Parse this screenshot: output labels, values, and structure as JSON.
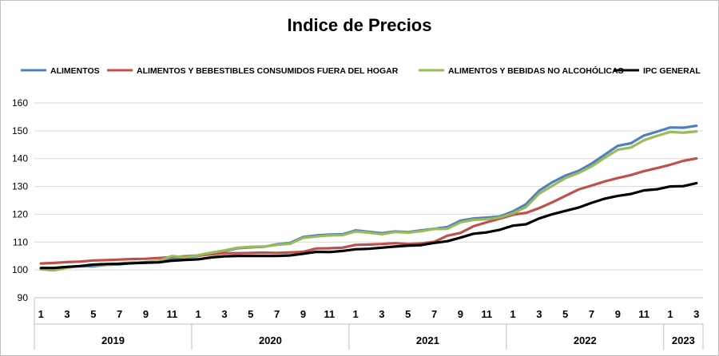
{
  "chart_data": {
    "type": "line",
    "title": "Indice de Precios",
    "ylim": [
      90,
      160
    ],
    "yticks": [
      90,
      100,
      110,
      120,
      130,
      140,
      150,
      160
    ],
    "grid": true,
    "legend_position": "top",
    "x_tick_labels": [
      "1",
      "3",
      "5",
      "7",
      "9",
      "11",
      "1",
      "3",
      "5",
      "7",
      "9",
      "11",
      "1",
      "3",
      "5",
      "7",
      "9",
      "11",
      "1",
      "3",
      "5",
      "7",
      "9",
      "11",
      "1",
      "3"
    ],
    "years": [
      {
        "label": "2019",
        "months": 12
      },
      {
        "label": "2020",
        "months": 12
      },
      {
        "label": "2021",
        "months": 12
      },
      {
        "label": "2022",
        "months": 12
      },
      {
        "label": "2023",
        "months": 3
      }
    ],
    "series": [
      {
        "name": "ALIMENTOS",
        "color": "#4f81bd",
        "values": [
          100.5,
          100.2,
          101.0,
          101.3,
          101.3,
          101.8,
          102.0,
          102.5,
          102.8,
          103.2,
          104.2,
          104.4,
          105.0,
          105.8,
          106.8,
          107.8,
          108.1,
          108.3,
          109.2,
          109.7,
          111.8,
          112.4,
          112.7,
          112.8,
          114.2,
          113.7,
          113.2,
          113.8,
          113.6,
          114.2,
          114.8,
          115.4,
          117.7,
          118.5,
          118.8,
          119.2,
          121.0,
          123.6,
          128.5,
          131.5,
          133.9,
          135.6,
          138.2,
          141.4,
          144.6,
          145.5,
          148.3,
          149.7,
          151.2,
          151.1,
          151.8
        ]
      },
      {
        "name": "ALIMENTOS Y BEBESTIBLES CONSUMIDOS FUERA DEL HOGAR",
        "color": "#c0504d",
        "values": [
          102.3,
          102.5,
          102.8,
          103.0,
          103.4,
          103.5,
          103.7,
          103.9,
          104.0,
          104.3,
          104.6,
          104.9,
          105.2,
          105.6,
          106.0,
          106.0,
          106.1,
          106.2,
          106.1,
          106.3,
          106.5,
          107.7,
          107.8,
          108.0,
          109.0,
          109.1,
          109.3,
          109.6,
          109.3,
          109.5,
          110.1,
          112.3,
          113.3,
          115.7,
          117.1,
          118.4,
          119.8,
          120.5,
          122.2,
          124.3,
          126.6,
          128.9,
          130.3,
          131.8,
          133.0,
          134.1,
          135.5,
          136.6,
          137.8,
          139.2,
          140.1
        ]
      },
      {
        "name": "ALIMENTOS Y BEBIDAS NO ALCOHÓLICAS",
        "color": "#9bbb59",
        "values": [
          100.2,
          99.8,
          100.8,
          101.4,
          101.7,
          101.8,
          102.3,
          102.7,
          102.6,
          103.3,
          105.0,
          104.5,
          105.3,
          106.2,
          107.0,
          108.0,
          108.3,
          108.4,
          109.0,
          109.4,
          111.5,
          112.0,
          112.4,
          112.5,
          113.8,
          113.4,
          112.8,
          113.6,
          113.4,
          113.9,
          114.7,
          114.8,
          117.1,
          118.0,
          118.2,
          118.8,
          120.3,
          122.6,
          127.4,
          130.2,
          133.0,
          134.8,
          137.2,
          140.3,
          143.2,
          144.0,
          146.6,
          148.2,
          149.6,
          149.3,
          149.8
        ]
      },
      {
        "name": "IPC GENERAL",
        "color": "#000000",
        "values": [
          100.7,
          100.7,
          101.1,
          101.4,
          101.9,
          102.1,
          102.2,
          102.4,
          102.6,
          102.7,
          103.3,
          103.6,
          103.8,
          104.5,
          104.9,
          105.0,
          105.0,
          105.0,
          105.0,
          105.2,
          105.8,
          106.5,
          106.4,
          106.8,
          107.4,
          107.6,
          108.0,
          108.4,
          108.7,
          108.9,
          109.7,
          110.3,
          111.6,
          113.0,
          113.5,
          114.4,
          115.9,
          116.4,
          118.5,
          120.0,
          121.2,
          122.4,
          124.1,
          125.6,
          126.6,
          127.3,
          128.6,
          129.0,
          130.0,
          130.1,
          131.2
        ]
      }
    ]
  }
}
